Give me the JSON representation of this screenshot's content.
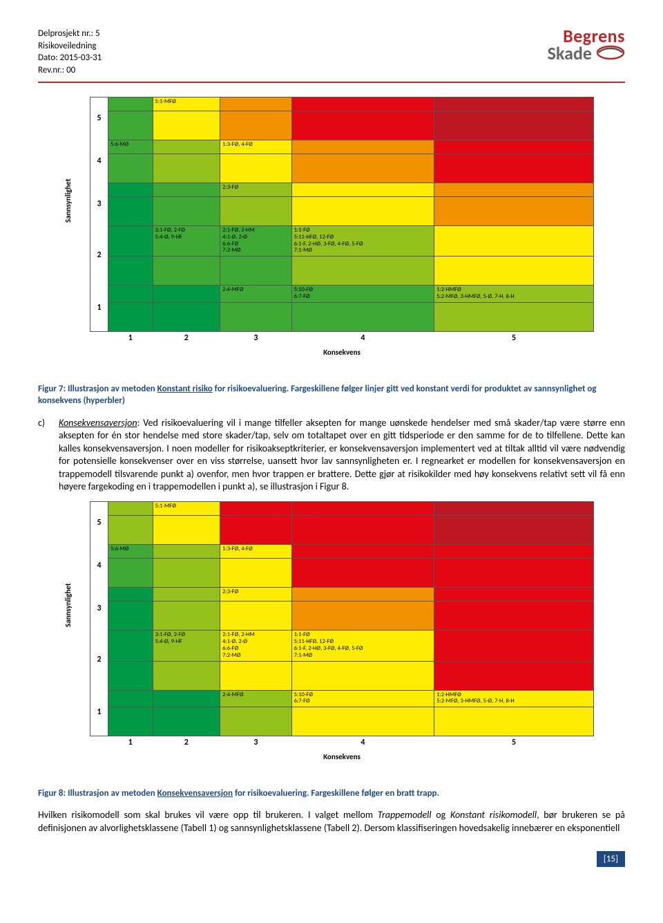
{
  "header": {
    "line1": "Delprosjekt nr.: 5",
    "line2": "Risikoveiledning",
    "line3": "Dato: 2015-03-31",
    "line4": "Rev.nr.: 00",
    "logo1": "Begrens",
    "logo2": "Skade"
  },
  "matrix": {
    "ylabel": "Sannsynlighet",
    "xlabel": "Konsekvens",
    "xticks": [
      "1",
      "2",
      "3",
      "4",
      "5"
    ],
    "yticks": [
      "5",
      "4",
      "3",
      "2",
      "1"
    ],
    "colors": {
      "green_d": "#009a46",
      "green_m": "#3eaa35",
      "green_l": "#95c11f",
      "yellow": "#ffed00",
      "orange": "#f39200",
      "red": "#e30613",
      "red_d": "#be1622"
    }
  },
  "chart1": {
    "rows": [
      {
        "y": "5",
        "top": [
          "",
          "5:1-MFØ",
          "",
          "",
          ""
        ],
        "top_c": [
          "green_m",
          "yellow",
          "orange",
          "red",
          "red_d"
        ],
        "bot": [
          "",
          "",
          "",
          "",
          ""
        ],
        "bot_c": [
          "green_m",
          "yellow",
          "orange",
          "red",
          "red_d"
        ]
      },
      {
        "y": "4",
        "top": [
          "5:6-MØ",
          "",
          "1:3-FØ, 4-FØ",
          "",
          ""
        ],
        "top_c": [
          "green_m",
          "green_l",
          "yellow",
          "orange",
          "red"
        ],
        "bot": [
          "",
          "",
          "",
          "",
          ""
        ],
        "bot_c": [
          "green_m",
          "green_l",
          "yellow",
          "orange",
          "red"
        ]
      },
      {
        "y": "3",
        "top": [
          "",
          "",
          "2:3-FØ",
          "",
          ""
        ],
        "top_c": [
          "green_d",
          "green_m",
          "green_l",
          "yellow",
          "orange"
        ],
        "bot": [
          "",
          "",
          "",
          "",
          ""
        ],
        "bot_c": [
          "green_d",
          "green_m",
          "green_l",
          "yellow",
          "orange"
        ]
      },
      {
        "y": "2",
        "top": [
          "",
          "3:1-FØ, 2-FØ\n5:4-Ø, 9-HF",
          "2:1-FØ, 2-HM\n4:1-Ø, 2-Ø\n6:6-FØ\n7:2-MØ",
          "1:1-FØ\n5:11-HFØ, 12-FØ\n6:1-F, 2-HØ, 3-FØ, 4-FØ, 5-FØ\n7:1-MØ",
          ""
        ],
        "top_c": [
          "green_d",
          "green_m",
          "green_m",
          "green_l",
          "yellow"
        ],
        "bot": [
          "",
          "",
          "",
          "",
          ""
        ],
        "bot_c": [
          "green_d",
          "green_m",
          "green_m",
          "green_l",
          "yellow"
        ]
      },
      {
        "y": "1",
        "top": [
          "",
          "",
          "2:4-MFØ",
          "5:10-FØ\n6:7-FØ",
          "1:2-HMFØ\n5:2-MFØ, 3-HMFØ, 5-Ø, 7-H, 8-H"
        ],
        "top_c": [
          "green_d",
          "green_d",
          "green_m",
          "green_m",
          "green_l"
        ],
        "bot": [
          "",
          "",
          "",
          "",
          ""
        ],
        "bot_c": [
          "green_d",
          "green_d",
          "green_m",
          "green_m",
          "green_l"
        ]
      }
    ]
  },
  "chart2": {
    "rows": [
      {
        "y": "5",
        "top": [
          "",
          "5:1-MFØ",
          "",
          "",
          ""
        ],
        "top_c": [
          "green_l",
          "yellow",
          "red",
          "red",
          "red_d"
        ],
        "bot": [
          "",
          "",
          "",
          "",
          ""
        ],
        "bot_c": [
          "green_l",
          "yellow",
          "red",
          "red",
          "red_d"
        ]
      },
      {
        "y": "4",
        "top": [
          "5:6-MØ",
          "",
          "1:3-FØ, 4-FØ",
          "",
          ""
        ],
        "top_c": [
          "green_m",
          "green_l",
          "yellow",
          "red",
          "red"
        ],
        "bot": [
          "",
          "",
          "",
          "",
          ""
        ],
        "bot_c": [
          "green_m",
          "green_l",
          "yellow",
          "red",
          "red"
        ]
      },
      {
        "y": "3",
        "top": [
          "",
          "",
          "2:3-FØ",
          "",
          ""
        ],
        "top_c": [
          "green_d",
          "green_l",
          "yellow",
          "orange",
          "red"
        ],
        "bot": [
          "",
          "",
          "",
          "",
          ""
        ],
        "bot_c": [
          "green_d",
          "green_l",
          "yellow",
          "orange",
          "red"
        ]
      },
      {
        "y": "2",
        "top": [
          "",
          "3:1-FØ, 2-FØ\n5:4-Ø, 9-HF",
          "2:1-FØ, 2-HM\n4:1-Ø, 2-Ø\n6:6-FØ\n7:2-MØ",
          "1:1-FØ\n5:11-HFØ, 12-FØ\n6:1-F, 2-HØ, 3-FØ, 4-FØ, 5-FØ\n7:1-MØ",
          ""
        ],
        "top_c": [
          "green_d",
          "green_l",
          "yellow",
          "yellow",
          "red"
        ],
        "bot": [
          "",
          "",
          "",
          "",
          ""
        ],
        "bot_c": [
          "green_d",
          "green_l",
          "yellow",
          "yellow",
          "red"
        ]
      },
      {
        "y": "1",
        "top": [
          "",
          "",
          "2:4-MFØ",
          "5:10-FØ\n6:7-FØ",
          "1:2-HMFØ\n5:2-MFØ, 3-HMFØ, 5-Ø, 7-H, 8-H"
        ],
        "top_c": [
          "green_d",
          "green_d",
          "green_l",
          "yellow",
          "yellow"
        ],
        "bot": [
          "",
          "",
          "",
          "",
          ""
        ],
        "bot_c": [
          "green_d",
          "green_d",
          "green_l",
          "yellow",
          "yellow"
        ]
      }
    ]
  },
  "caption1_a": "Figur 7: Illustrasjon av metoden ",
  "caption1_u": "Konstant risiko",
  "caption1_b": " for risikoevaluering. Fargeskillene følger linjer gitt ved konstant verdi for produktet av sannsynlighet og konsekvens (hyperbler)",
  "para_c_label": "c)",
  "para_c_lead_u": "Konsekvensaversjon",
  "para_c_text": ": Ved risikoevaluering vil i mange tilfeller aksepten for mange uønskede hendelser med små skader/tap være større enn aksepten for én stor hendelse med store skader/tap, selv om totaltapet over en gitt tidsperiode er den samme for de to tilfellene. Dette kan kalles konsekvensaversjon. I noen modeller for risikoakseptkriterier, er konsekvensaversjon implementert ved at tiltak alltid vil være nødvendig for potensielle konsekvenser over en viss størrelse, uansett hvor lav sannsynligheten er. I regnearket er modellen for konsekvensaversjon en trappemodell tilsvarende punkt a) ovenfor, men hvor trappen er brattere. Dette gjør at risikokilder med høy konsekvens relativt sett vil få enn høyere fargekoding en i trappemodellen i punkt a), se illustrasjon i Figur 8.",
  "caption2_a": "Figur 8: Illustrasjon av metoden ",
  "caption2_u": "Konsekvensaversjon",
  "caption2_b": " for risikoevaluering. Fargeskillene følger en bratt trapp.",
  "para2_a": "Hvilken risikomodell som skal brukes vil være opp til brukeren. I valget mellom ",
  "para2_i1": "Trappemodell",
  "para2_b": " og ",
  "para2_i2": "Konstant risikomodell",
  "para2_c": ", bør brukeren se på definisjonen av alvorlighetsklassene (Tabell 1) og sannsynlighetsklassene (Tabell 2). Dersom klassifiseringen hovedsakelig innebærer en eksponentiell",
  "footer": "[15]"
}
